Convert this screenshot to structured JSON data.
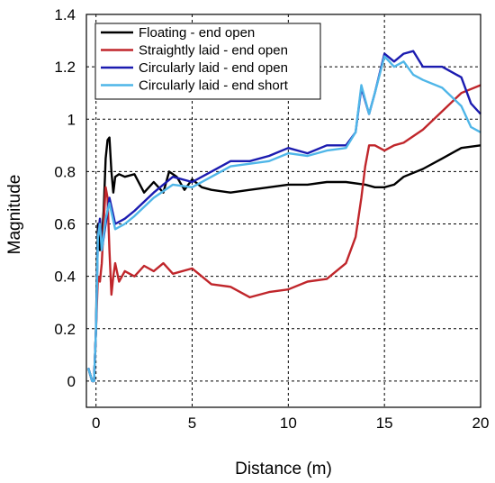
{
  "chart_data": {
    "type": "line",
    "xlabel": "Distance (m)",
    "ylabel": "Magnitude",
    "xlim": [
      -0.5,
      20
    ],
    "ylim": [
      -0.1,
      1.4
    ],
    "xticks": [
      0,
      5,
      10,
      15,
      20
    ],
    "yticks": [
      0,
      0.2,
      0.4,
      0.6,
      0.8,
      1,
      1.2,
      1.4
    ],
    "xtick_labels": [
      "0",
      "5",
      "10",
      "15",
      "20"
    ],
    "ytick_labels": [
      "0",
      "0.2",
      "0.4",
      "0.6",
      "0.8",
      "1",
      "1.2",
      "1.4"
    ],
    "grid": true,
    "legend_position": "top-left",
    "series": [
      {
        "name": "Floating - end open",
        "color": "#000000",
        "x": [
          -0.4,
          -0.2,
          -0.1,
          0.0,
          0.05,
          0.1,
          0.2,
          0.3,
          0.4,
          0.5,
          0.6,
          0.7,
          0.8,
          0.9,
          1.0,
          1.2,
          1.5,
          2.0,
          2.5,
          3.0,
          3.5,
          3.8,
          4.2,
          4.6,
          5.0,
          5.5,
          6.0,
          7.0,
          8.0,
          9.0,
          10.0,
          11.0,
          12.0,
          13.0,
          14.0,
          14.5,
          15.0,
          15.5,
          16.0,
          17.0,
          18.0,
          19.0,
          20.0
        ],
        "y": [
          0.05,
          0.0,
          0.0,
          0.2,
          0.45,
          0.6,
          0.5,
          0.55,
          0.65,
          0.85,
          0.92,
          0.93,
          0.8,
          0.72,
          0.78,
          0.79,
          0.78,
          0.79,
          0.72,
          0.76,
          0.72,
          0.8,
          0.78,
          0.73,
          0.77,
          0.74,
          0.73,
          0.72,
          0.73,
          0.74,
          0.75,
          0.75,
          0.76,
          0.76,
          0.75,
          0.74,
          0.74,
          0.75,
          0.78,
          0.81,
          0.85,
          0.89,
          0.9
        ]
      },
      {
        "name": "Straightly laid - end open",
        "color": "#c0262b",
        "x": [
          -0.4,
          -0.2,
          -0.1,
          0.0,
          0.1,
          0.2,
          0.3,
          0.4,
          0.5,
          0.6,
          0.7,
          0.8,
          0.9,
          1.0,
          1.2,
          1.5,
          2.0,
          2.5,
          3.0,
          3.5,
          4.0,
          5.0,
          6.0,
          7.0,
          8.0,
          9.0,
          10.0,
          11.0,
          12.0,
          13.0,
          13.5,
          13.8,
          14.0,
          14.2,
          14.5,
          15.0,
          15.5,
          16.0,
          17.0,
          18.0,
          19.0,
          20.0
        ],
        "y": [
          0.05,
          0.0,
          0.0,
          0.2,
          0.4,
          0.38,
          0.45,
          0.6,
          0.74,
          0.7,
          0.5,
          0.33,
          0.4,
          0.45,
          0.38,
          0.42,
          0.4,
          0.44,
          0.42,
          0.45,
          0.41,
          0.43,
          0.37,
          0.36,
          0.32,
          0.34,
          0.35,
          0.38,
          0.39,
          0.45,
          0.55,
          0.7,
          0.82,
          0.9,
          0.9,
          0.88,
          0.9,
          0.91,
          0.96,
          1.03,
          1.1,
          1.13
        ]
      },
      {
        "name": "Circularly laid - end open",
        "color": "#1b1bb0",
        "x": [
          -0.4,
          -0.2,
          -0.1,
          0.0,
          0.1,
          0.2,
          0.3,
          0.5,
          0.7,
          1.0,
          1.5,
          2.0,
          3.0,
          4.0,
          5.0,
          6.0,
          7.0,
          8.0,
          9.0,
          10.0,
          11.0,
          12.0,
          13.0,
          13.5,
          13.8,
          14.2,
          14.5,
          15.0,
          15.5,
          16.0,
          16.5,
          17.0,
          18.0,
          19.0,
          19.5,
          20.0
        ],
        "y": [
          0.05,
          0.0,
          0.0,
          0.2,
          0.55,
          0.62,
          0.5,
          0.6,
          0.7,
          0.6,
          0.62,
          0.65,
          0.72,
          0.78,
          0.76,
          0.8,
          0.84,
          0.84,
          0.86,
          0.89,
          0.87,
          0.9,
          0.9,
          0.95,
          1.12,
          1.02,
          1.1,
          1.25,
          1.22,
          1.25,
          1.26,
          1.2,
          1.2,
          1.16,
          1.06,
          1.02
        ]
      },
      {
        "name": "Circularly laid - end short",
        "color": "#4fb6e8",
        "x": [
          -0.4,
          -0.2,
          -0.1,
          0.0,
          0.1,
          0.2,
          0.3,
          0.5,
          0.7,
          1.0,
          1.5,
          2.0,
          3.0,
          4.0,
          5.0,
          6.0,
          7.0,
          8.0,
          9.0,
          10.0,
          11.0,
          12.0,
          13.0,
          13.5,
          13.8,
          14.2,
          14.5,
          15.0,
          15.5,
          16.0,
          16.5,
          17.0,
          18.0,
          19.0,
          19.5,
          20.0
        ],
        "y": [
          0.05,
          0.0,
          0.0,
          0.2,
          0.55,
          0.6,
          0.5,
          0.62,
          0.68,
          0.58,
          0.6,
          0.63,
          0.7,
          0.75,
          0.74,
          0.78,
          0.82,
          0.83,
          0.84,
          0.87,
          0.86,
          0.88,
          0.89,
          0.95,
          1.13,
          1.02,
          1.1,
          1.24,
          1.2,
          1.22,
          1.17,
          1.15,
          1.12,
          1.05,
          0.97,
          0.95
        ]
      }
    ]
  }
}
